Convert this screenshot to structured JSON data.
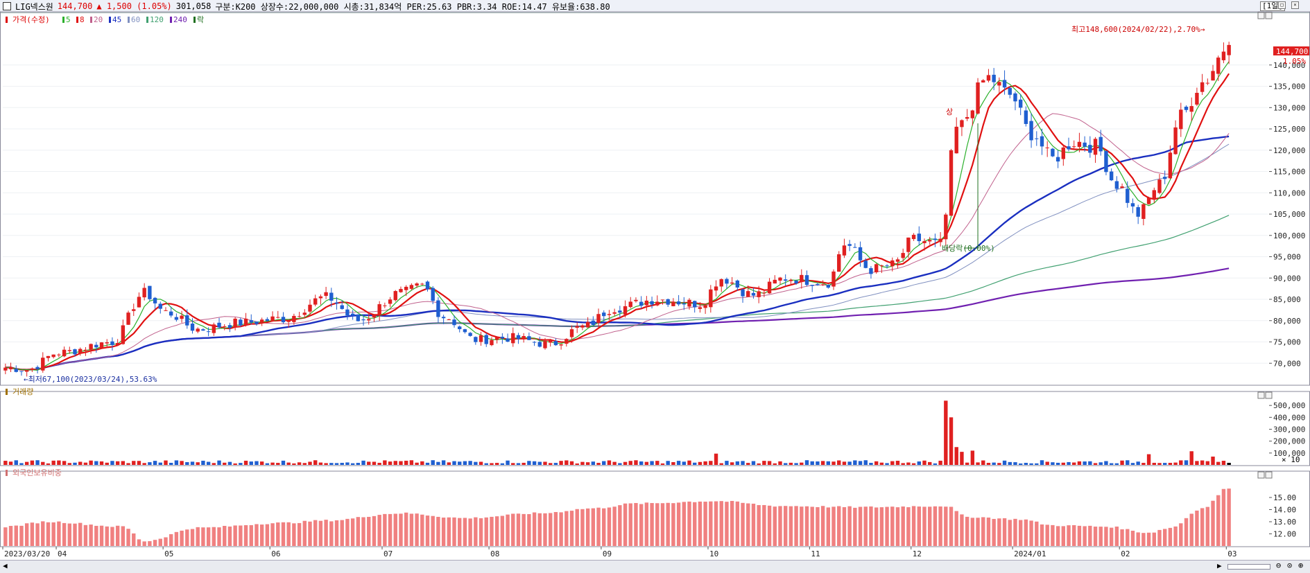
{
  "header": {
    "stock_name": "LIG넥스원",
    "price": "144,700",
    "change": "▲ 1,500 (1.05%)",
    "volume": "301,058",
    "info": "구분:K200 상장수:22,000,000 시총:31,834억 PER:25.63 PBR:3.34 ROE:14.47 유보율:638.80",
    "timeframe": "[1일]"
  },
  "price_pane": {
    "legend_title": "가격(수정)",
    "ma_labels": [
      {
        "label": "5",
        "color": "#2bb02b"
      },
      {
        "label": "8",
        "color": "#e01010"
      },
      {
        "label": "20",
        "color": "#c0608c"
      },
      {
        "label": "45",
        "color": "#1a2fc0"
      },
      {
        "label": "60",
        "color": "#8090c0"
      },
      {
        "label": "120",
        "color": "#40a070"
      },
      {
        "label": "240",
        "color": "#7020b0"
      },
      {
        "label": "락",
        "color": "#207020"
      }
    ],
    "last_price_tag": "144,700",
    "last_pct_tag": "1.05%",
    "annotation_high": "최고148,600(2024/02/22),2.70%→",
    "annotation_low": "←최저67,100(2023/03/24),53.63%",
    "annotation_div": "배당락(0.00%)",
    "annotation_sang": "상",
    "up_color": "#e02020",
    "down_color": "#1f5fd0"
  },
  "volume_pane": {
    "title": "거래량",
    "unit_label": "× 10"
  },
  "foreign_pane": {
    "title": "외국인보유비중"
  },
  "x_axis": {
    "labels": [
      "2023/03/20",
      "04",
      "05",
      "06",
      "07",
      "08",
      "09",
      "10",
      "11",
      "12",
      "2024/01",
      "02",
      "03"
    ]
  },
  "chart_data": {
    "type": "candlestick",
    "panes": [
      {
        "name": "가격(수정)",
        "ylim": [
          65000,
          152000
        ],
        "yticks": [
          70000,
          75000,
          80000,
          85000,
          90000,
          95000,
          100000,
          105000,
          110000,
          115000,
          120000,
          125000,
          130000,
          135000,
          140000
        ],
        "ytick_labels": [
          "70,000",
          "75,000",
          "80,000",
          "85,000",
          "90,000",
          "95,000",
          "100,000",
          "105,000",
          "110,000",
          "115,000",
          "120,000",
          "125,000",
          "130,000",
          "135,000",
          "140,000"
        ]
      },
      {
        "name": "거래량",
        "ylim": [
          0,
          600000
        ],
        "yticks": [
          100000,
          200000,
          300000,
          400000,
          500000
        ],
        "ytick_labels": [
          "100,000",
          "200,000",
          "300,000",
          "400,000",
          "500,000"
        ]
      },
      {
        "name": "외국인보유비중",
        "ylim": [
          11,
          17
        ],
        "yticks": [
          12,
          13,
          14,
          15
        ],
        "ytick_labels": [
          "12.00",
          "13.00",
          "14.00",
          "15.00"
        ]
      }
    ],
    "month_bar_index": [
      0,
      10,
      30,
      50,
      71,
      91,
      112,
      132,
      151,
      170,
      189,
      209,
      229
    ],
    "price_waypoints": [
      {
        "i": 0,
        "p": 69000
      },
      {
        "i": 4,
        "p": 68500
      },
      {
        "i": 10,
        "p": 72500
      },
      {
        "i": 20,
        "p": 75000
      },
      {
        "i": 26,
        "p": 86500
      },
      {
        "i": 30,
        "p": 82000
      },
      {
        "i": 36,
        "p": 78000
      },
      {
        "i": 44,
        "p": 79500
      },
      {
        "i": 52,
        "p": 80500
      },
      {
        "i": 60,
        "p": 85500
      },
      {
        "i": 66,
        "p": 80000
      },
      {
        "i": 74,
        "p": 86500
      },
      {
        "i": 78,
        "p": 88000
      },
      {
        "i": 82,
        "p": 81000
      },
      {
        "i": 88,
        "p": 75500
      },
      {
        "i": 94,
        "p": 76000
      },
      {
        "i": 102,
        "p": 74500
      },
      {
        "i": 108,
        "p": 78500
      },
      {
        "i": 114,
        "p": 83000
      },
      {
        "i": 122,
        "p": 85000
      },
      {
        "i": 130,
        "p": 84000
      },
      {
        "i": 134,
        "p": 90000
      },
      {
        "i": 140,
        "p": 86000
      },
      {
        "i": 146,
        "p": 90000
      },
      {
        "i": 154,
        "p": 89000
      },
      {
        "i": 157,
        "p": 98000
      },
      {
        "i": 162,
        "p": 92000
      },
      {
        "i": 166,
        "p": 93000
      },
      {
        "i": 170,
        "p": 99000
      },
      {
        "i": 175,
        "p": 98000
      },
      {
        "i": 178,
        "p": 125000
      },
      {
        "i": 184,
        "p": 137000
      },
      {
        "i": 188,
        "p": 133000
      },
      {
        "i": 192,
        "p": 124000
      },
      {
        "i": 196,
        "p": 118000
      },
      {
        "i": 200,
        "p": 122000
      },
      {
        "i": 204,
        "p": 121000
      },
      {
        "i": 208,
        "p": 112000
      },
      {
        "i": 212,
        "p": 105000
      },
      {
        "i": 216,
        "p": 112000
      },
      {
        "i": 220,
        "p": 128000
      },
      {
        "i": 224,
        "p": 136000
      },
      {
        "i": 229,
        "p": 144700
      }
    ],
    "volume_spikes": [
      {
        "i": 176,
        "v": 540000
      },
      {
        "i": 177,
        "v": 400000
      },
      {
        "i": 178,
        "v": 150000
      },
      {
        "i": 179,
        "v": 110000
      },
      {
        "i": 181,
        "v": 120000
      },
      {
        "i": 133,
        "v": 95000
      },
      {
        "i": 214,
        "v": 90000
      },
      {
        "i": 222,
        "v": 115000
      },
      {
        "i": 226,
        "v": 70000
      }
    ],
    "foreign_waypoints": [
      {
        "i": 0,
        "v": 12.6
      },
      {
        "i": 8,
        "v": 13.0
      },
      {
        "i": 22,
        "v": 12.6
      },
      {
        "i": 26,
        "v": 11.4
      },
      {
        "i": 36,
        "v": 12.5
      },
      {
        "i": 52,
        "v": 12.9
      },
      {
        "i": 60,
        "v": 13.1
      },
      {
        "i": 74,
        "v": 13.7
      },
      {
        "i": 86,
        "v": 13.3
      },
      {
        "i": 100,
        "v": 13.7
      },
      {
        "i": 110,
        "v": 14.1
      },
      {
        "i": 118,
        "v": 14.5
      },
      {
        "i": 133,
        "v": 14.7
      },
      {
        "i": 145,
        "v": 14.3
      },
      {
        "i": 160,
        "v": 14.2
      },
      {
        "i": 176,
        "v": 14.3
      },
      {
        "i": 180,
        "v": 13.4
      },
      {
        "i": 190,
        "v": 13.2
      },
      {
        "i": 196,
        "v": 12.7
      },
      {
        "i": 206,
        "v": 12.6
      },
      {
        "i": 214,
        "v": 12.1
      },
      {
        "i": 218,
        "v": 12.5
      },
      {
        "i": 224,
        "v": 14.1
      },
      {
        "i": 229,
        "v": 15.8
      }
    ]
  }
}
